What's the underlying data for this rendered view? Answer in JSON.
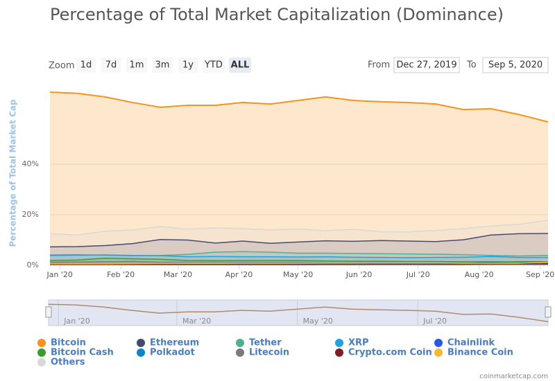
{
  "chart_data": {
    "type": "area",
    "title": "Percentage of Total Market Capitalization (Dominance)",
    "ylabel": "Percentage of Total Market Cap",
    "x": [
      "2019-12-27",
      "2020-01-10",
      "2020-01-24",
      "2020-02-07",
      "2020-02-21",
      "2020-03-06",
      "2020-03-20",
      "2020-04-03",
      "2020-04-17",
      "2020-05-01",
      "2020-05-15",
      "2020-05-29",
      "2020-06-12",
      "2020-06-26",
      "2020-07-10",
      "2020-07-24",
      "2020-08-07",
      "2020-08-21",
      "2020-09-05"
    ],
    "xlim": [
      "2019-12-27",
      "2020-09-05"
    ],
    "xticks": [
      {
        "value": "2020-01-01",
        "label": "Jan '20"
      },
      {
        "value": "2020-02-01",
        "label": "Feb '20"
      },
      {
        "value": "2020-03-01",
        "label": "Mar '20"
      },
      {
        "value": "2020-04-01",
        "label": "Apr '20"
      },
      {
        "value": "2020-05-01",
        "label": "May '20"
      },
      {
        "value": "2020-06-01",
        "label": "Jun '20"
      },
      {
        "value": "2020-07-01",
        "label": "Jul '20"
      },
      {
        "value": "2020-08-01",
        "label": "Aug '20"
      },
      {
        "value": "2020-09-01",
        "label": "Sep '20"
      }
    ],
    "ylim": [
      0,
      70
    ],
    "yticks": [
      {
        "value": 0,
        "label": "0%"
      },
      {
        "value": 20,
        "label": "20%"
      },
      {
        "value": 40,
        "label": "40%"
      }
    ],
    "grid": true,
    "series": [
      {
        "name": "Bitcoin",
        "color": "#f7931a",
        "values": [
          68.5,
          68,
          66.6,
          64.4,
          62.5,
          63.3,
          63.3,
          64.4,
          63.8,
          65.2,
          66.6,
          65.2,
          64.7,
          64.4,
          63.8,
          61.6,
          61.9,
          59.7,
          56.7
        ]
      },
      {
        "name": "Ethereum",
        "color": "#454a75",
        "values": [
          7.3,
          7.4,
          7.8,
          8.6,
          10.2,
          10,
          8.8,
          9.6,
          8.7,
          9.2,
          9.7,
          9.5,
          9.8,
          9.6,
          9.4,
          10.1,
          12,
          12.5,
          12.6
        ]
      },
      {
        "name": "Tether",
        "color": "#50af95",
        "values": [
          4.1,
          4.2,
          4,
          3.8,
          3.9,
          4.3,
          5.2,
          5.4,
          5.2,
          4.8,
          4.8,
          4.7,
          4.6,
          4.5,
          4.4,
          4.2,
          3.9,
          3.7,
          3.9
        ]
      },
      {
        "name": "XRP",
        "color": "#23a1dc",
        "values": [
          3.9,
          4,
          4.1,
          3.9,
          3.8,
          3.4,
          3.5,
          3.4,
          3.4,
          3.3,
          3.4,
          3.2,
          3.1,
          3,
          3.1,
          3.2,
          3.5,
          3.1,
          3.1
        ]
      },
      {
        "name": "Chainlink",
        "color": "#2a5ada",
        "values": [
          0.2,
          0.2,
          0.3,
          0.3,
          0.3,
          0.3,
          0.3,
          0.4,
          0.4,
          0.4,
          0.4,
          0.4,
          0.5,
          0.6,
          0.7,
          0.8,
          1.2,
          1.4,
          1.4
        ]
      },
      {
        "name": "Bitcoin Cash",
        "color": "#3e9a33",
        "values": [
          1.9,
          2.1,
          2.8,
          2.6,
          2.4,
          1.9,
          1.8,
          1.9,
          1.9,
          1.9,
          1.7,
          1.6,
          1.6,
          1.5,
          1.5,
          1.4,
          1.4,
          1.3,
          1.1
        ]
      },
      {
        "name": "Polkadot",
        "color": "#0b86c9",
        "values": [
          null,
          null,
          null,
          null,
          null,
          null,
          null,
          null,
          null,
          null,
          null,
          null,
          null,
          null,
          null,
          null,
          null,
          0.8,
          1.3
        ]
      },
      {
        "name": "Litecoin",
        "color": "#7a7a7a",
        "values": [
          1.2,
          1.3,
          1.4,
          1.5,
          1.2,
          1.2,
          1.2,
          1.2,
          1.1,
          1.2,
          1,
          1,
          1,
          0.9,
          0.9,
          0.9,
          0.9,
          0.8,
          0.7
        ]
      },
      {
        "name": "Crypto.com Coin",
        "color": "#7a1f2a",
        "values": [
          0.3,
          0.3,
          0.3,
          0.3,
          0.3,
          0.3,
          0.3,
          0.3,
          0.3,
          0.3,
          0.4,
          0.4,
          0.4,
          0.4,
          0.4,
          0.4,
          0.5,
          0.5,
          0.5
        ]
      },
      {
        "name": "Binance Coin",
        "color": "#f3ba2f",
        "values": [
          0.6,
          0.6,
          0.6,
          0.7,
          0.8,
          0.9,
          0.9,
          0.9,
          0.8,
          0.9,
          0.9,
          0.9,
          0.9,
          0.9,
          0.9,
          0.8,
          0.8,
          0.8,
          1.3
        ]
      },
      {
        "name": "Others",
        "color": "#d8d8d8",
        "values": [
          12.5,
          12,
          13.5,
          14,
          15.3,
          14.3,
          14.8,
          14.5,
          14,
          14.3,
          13.7,
          14.2,
          13.3,
          13.2,
          13.8,
          14.5,
          15.5,
          16.2,
          17.8
        ]
      }
    ],
    "navigator_ylim": [
      55,
      70
    ],
    "navigator_ticks": [
      {
        "value": "2020-01-01",
        "label": "Jan '20"
      },
      {
        "value": "2020-03-01",
        "label": "Mar '20"
      },
      {
        "value": "2020-05-01",
        "label": "May '20"
      },
      {
        "value": "2020-07-01",
        "label": "Jul '20"
      }
    ]
  },
  "zoom": {
    "label": "Zoom",
    "buttons": [
      "1d",
      "7d",
      "1m",
      "3m",
      "1y",
      "YTD",
      "ALL"
    ],
    "selected": 6
  },
  "range": {
    "from_label": "From",
    "from": "Dec 27, 2019",
    "to_label": "To",
    "to": "Sep 5, 2020"
  },
  "credit": "coinmarketcap.com"
}
